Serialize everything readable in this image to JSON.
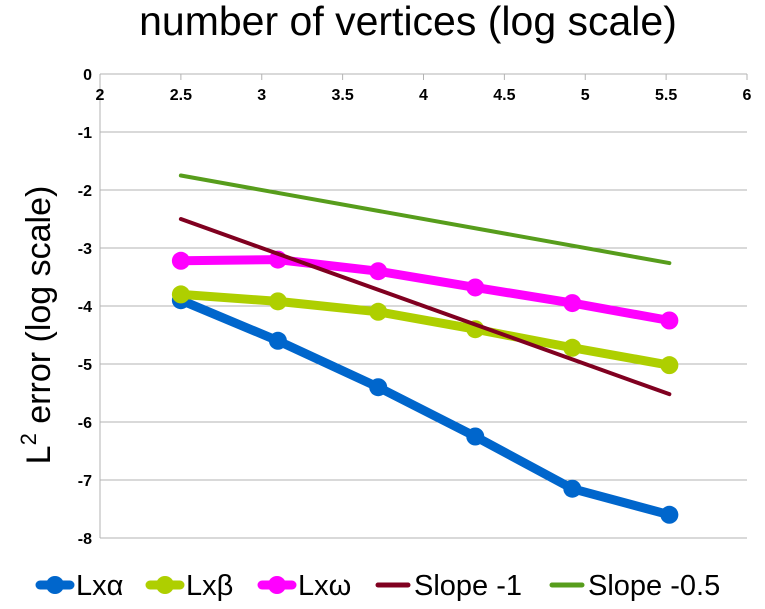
{
  "chart_data": {
    "type": "line",
    "title": "number of vertices (log scale)",
    "xlabel": "",
    "ylabel_base": "L",
    "ylabel_sup": "2",
    "ylabel_rest": " error (log scale)",
    "xlim": [
      2,
      6
    ],
    "ylim": [
      -8,
      0
    ],
    "x_ticks": [
      "2",
      "2.5",
      "3",
      "3.5",
      "4",
      "4.5",
      "5",
      "5.5",
      "6"
    ],
    "y_ticks": [
      "0",
      "-1",
      "-2",
      "-3",
      "-4",
      "-5",
      "-6",
      "-7",
      "-8"
    ],
    "grid": "horizontal",
    "legend_position": "bottom",
    "series": [
      {
        "name": "Lxα",
        "color": "#0066cc",
        "marker": true,
        "points": [
          [
            2.5,
            -3.9
          ],
          [
            3.1,
            -4.6
          ],
          [
            3.72,
            -5.4
          ],
          [
            4.32,
            -6.25
          ],
          [
            4.92,
            -7.15
          ],
          [
            5.52,
            -7.6
          ]
        ]
      },
      {
        "name": "Lxβ",
        "color": "#aecf00",
        "marker": true,
        "points": [
          [
            2.5,
            -3.8
          ],
          [
            3.1,
            -3.92
          ],
          [
            3.72,
            -4.1
          ],
          [
            4.32,
            -4.4
          ],
          [
            4.92,
            -4.72
          ],
          [
            5.52,
            -5.02
          ]
        ]
      },
      {
        "name": "Lxω",
        "color": "#ff00ff",
        "marker": true,
        "points": [
          [
            2.5,
            -3.22
          ],
          [
            3.1,
            -3.2
          ],
          [
            3.72,
            -3.4
          ],
          [
            4.32,
            -3.68
          ],
          [
            4.92,
            -3.95
          ],
          [
            5.52,
            -4.25
          ]
        ]
      },
      {
        "name": "Slope -1",
        "color": "#800020",
        "marker": false,
        "points": [
          [
            2.5,
            -2.5
          ],
          [
            5.52,
            -5.52
          ]
        ]
      },
      {
        "name": "Slope -0.5",
        "color": "#579d1c",
        "marker": false,
        "points": [
          [
            2.5,
            -1.75
          ],
          [
            5.52,
            -3.26
          ]
        ]
      }
    ]
  }
}
